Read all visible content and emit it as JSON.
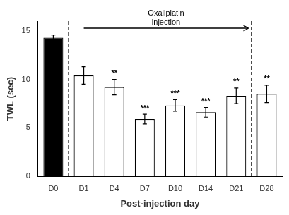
{
  "chart_data": {
    "type": "bar",
    "categories": [
      "D0",
      "D1",
      "D4",
      "D7",
      "D10",
      "D14",
      "D21",
      "D28"
    ],
    "values": [
      14.3,
      10.4,
      9.2,
      5.9,
      7.3,
      6.6,
      8.3,
      8.5
    ],
    "errors": [
      0.28,
      0.9,
      0.8,
      0.5,
      0.6,
      0.5,
      0.8,
      0.9
    ],
    "colors": [
      "black",
      "white",
      "white",
      "white",
      "white",
      "white",
      "white",
      "white"
    ],
    "significance": [
      null,
      null,
      "**",
      "***",
      "***",
      "***",
      "**",
      "**"
    ],
    "ylabel": "TWL (sec)",
    "xlabel": "Post-injection day",
    "ylim": [
      0,
      16
    ],
    "yticks": [
      0,
      5,
      10,
      15
    ],
    "annotation": "Oxaliplatin\ninjection",
    "dividers_after": [
      "D0",
      "D21"
    ],
    "grid": false
  }
}
